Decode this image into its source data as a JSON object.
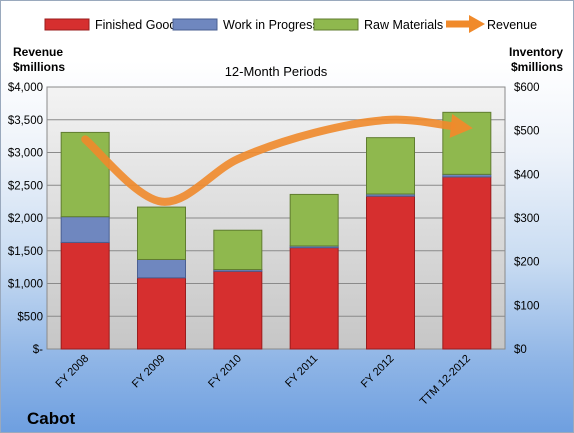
{
  "company_name": "Cabot",
  "chart_data": {
    "type": "bar",
    "stacked": true,
    "title": "12-Month Periods",
    "categories": [
      "FY 2008",
      "FY 2009",
      "FY 2010",
      "FY 2011",
      "FY 2012",
      "TTM 12-2012"
    ],
    "ylabel_left": "Revenue\n$millions",
    "ylabel_right": "Inventory\n$millions",
    "ylim_left": [
      0,
      4000
    ],
    "ylim_right": [
      0,
      600
    ],
    "left_ticks": [
      "$-",
      "$500",
      "$1,000",
      "$1,500",
      "$2,000",
      "$2,500",
      "$3,000",
      "$3,500",
      "$4,000"
    ],
    "right_ticks": [
      "$0",
      "$100",
      "$200",
      "$300",
      "$400",
      "$500",
      "$600"
    ],
    "grid": true,
    "legend_position": "top",
    "series": [
      {
        "name": "Finished Goods",
        "axis": "right",
        "color": "#d62f2f",
        "values": [
          244,
          163,
          178,
          232,
          350,
          394
        ]
      },
      {
        "name": "Work in Progress",
        "axis": "right",
        "color": "#6f87bf",
        "values": [
          59,
          42,
          4,
          4,
          5,
          6
        ]
      },
      {
        "name": "Raw Materials",
        "axis": "right",
        "color": "#8fb84e",
        "values": [
          193,
          120,
          90,
          118,
          129,
          142
        ]
      },
      {
        "name": "Revenue",
        "axis": "left",
        "type": "line",
        "color": "#f08a2b",
        "values": [
          3200,
          2250,
          2900,
          3300,
          3500,
          3380
        ]
      }
    ]
  }
}
